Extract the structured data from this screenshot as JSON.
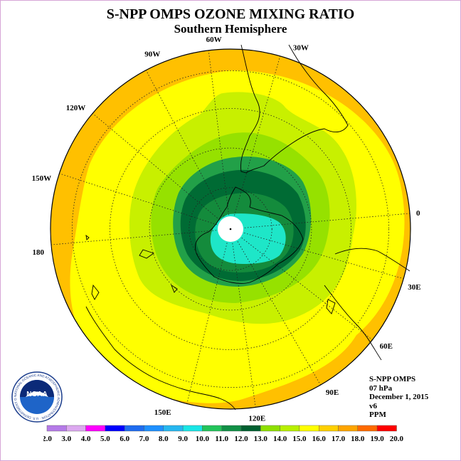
{
  "header": {
    "title": "S-NPP OMPS OZONE MIXING RATIO",
    "subtitle": "Southern Hemisphere"
  },
  "map": {
    "projection": "south-polar-stereographic",
    "meridian_labels": [
      "0",
      "30E",
      "60E",
      "90E",
      "120E",
      "150E",
      "180",
      "150W",
      "120W",
      "90W",
      "60W",
      "30W"
    ]
  },
  "info": {
    "instrument": "S-NPP OMPS",
    "level": "07 hPa",
    "date": "December 1, 2015",
    "version": "v6",
    "units": "PPM"
  },
  "colorbar": {
    "labels": [
      "2.0",
      "3.0",
      "4.0",
      "5.0",
      "6.0",
      "7.0",
      "8.0",
      "9.0",
      "10.0",
      "11.0",
      "12.0",
      "13.0",
      "14.0",
      "15.0",
      "16.0",
      "17.0",
      "18.0",
      "19.0",
      "20.0"
    ],
    "colors": [
      "#b57be8",
      "#dca8f0",
      "#ff00ff",
      "#0000ff",
      "#1e6cf0",
      "#1e90ff",
      "#26b7f0",
      "#19e6e6",
      "#22c45a",
      "#119046",
      "#006030",
      "#8ee000",
      "#b8f000",
      "#ffff00",
      "#ffd000",
      "#ffa500",
      "#ff6a00",
      "#ff0000",
      "#8a4a18"
    ]
  },
  "logo": {
    "text": "NOAA",
    "ring_text": "NATIONAL OCEANIC AND ATMOSPHERIC ADMINISTRATION · U.S. DEPARTMENT OF COMMERCE"
  }
}
